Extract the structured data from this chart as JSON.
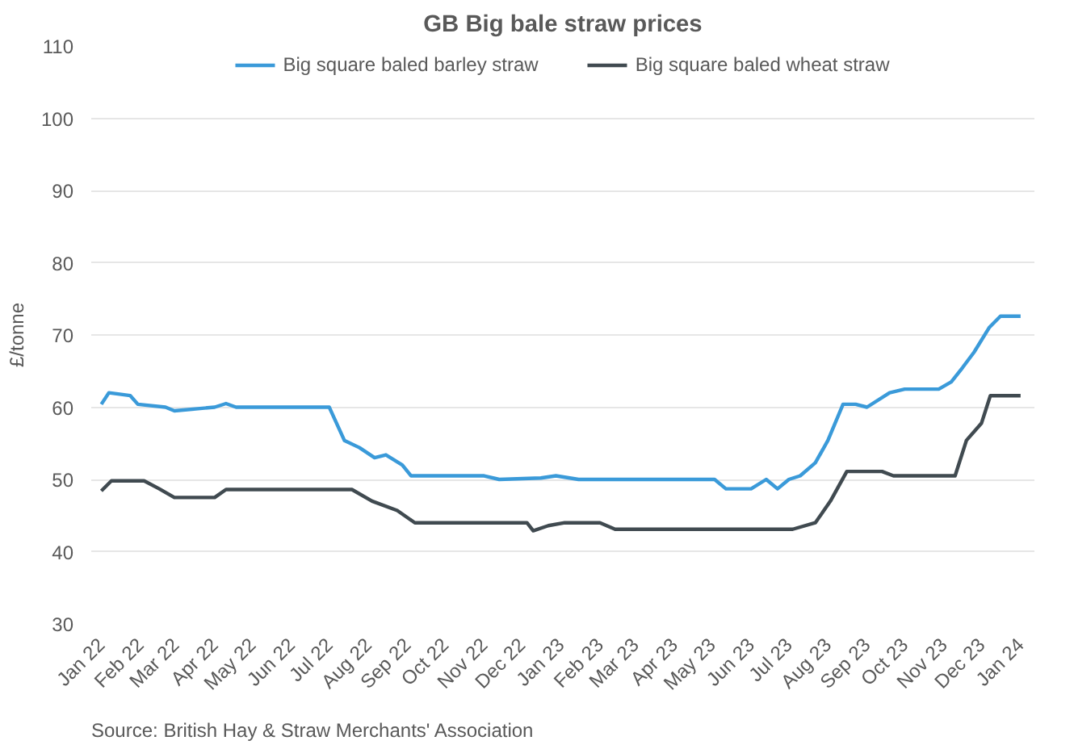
{
  "chart_data": {
    "type": "line",
    "title": "GB Big bale straw prices",
    "ylabel": "£/tonne",
    "annotations": [
      "Source: British Hay & Straw Merchants' Association"
    ],
    "series": [
      {
        "name": "Big square baled barley straw",
        "color": "#3a9ad9",
        "x": [
          "2022-01-01",
          "2022-01-07",
          "2022-01-24",
          "2022-01-30",
          "2022-02-21",
          "2022-02-28",
          "2022-04-01",
          "2022-04-10",
          "2022-04-18",
          "2022-05-06",
          "2022-07-01",
          "2022-07-13",
          "2022-07-25",
          "2022-08-06",
          "2022-08-15",
          "2022-08-28",
          "2022-09-04",
          "2022-11-01",
          "2022-11-13",
          "2022-12-16",
          "2022-12-28",
          "2023-01-15",
          "2023-05-03",
          "2023-05-12",
          "2023-06-01",
          "2023-06-13",
          "2023-06-22",
          "2023-07-01",
          "2023-07-10",
          "2023-07-22",
          "2023-08-01",
          "2023-08-13",
          "2023-08-23",
          "2023-09-01",
          "2023-09-19",
          "2023-10-01",
          "2023-10-28",
          "2023-11-07",
          "2023-11-16",
          "2023-11-25",
          "2023-12-07",
          "2023-12-16",
          "2024-01-01"
        ],
        "values": [
          60.4,
          62,
          61.6,
          60.4,
          60,
          59.5,
          60,
          60.5,
          60,
          60,
          60,
          55.4,
          54.4,
          53,
          53.4,
          52,
          50.5,
          50.5,
          50,
          50.2,
          50.5,
          50,
          50,
          48.7,
          48.7,
          50,
          48.7,
          50,
          50.5,
          52.3,
          55.4,
          60.4,
          60.4,
          60,
          62,
          62.5,
          62.5,
          63.5,
          65.5,
          67.6,
          71,
          72.6,
          72.6
        ]
      },
      {
        "name": "Big square baled wheat straw",
        "color": "#404a50",
        "x": [
          "2022-01-01",
          "2022-01-09",
          "2022-02-04",
          "2022-02-16",
          "2022-02-28",
          "2022-04-01",
          "2022-04-10",
          "2022-07-19",
          "2022-08-04",
          "2022-08-24",
          "2022-09-07",
          "2022-12-05",
          "2022-12-10",
          "2022-12-22",
          "2023-01-04",
          "2023-02-01",
          "2023-02-13",
          "2023-07-04",
          "2023-07-22",
          "2023-08-03",
          "2023-08-16",
          "2023-09-13",
          "2023-09-22",
          "2023-11-10",
          "2023-11-19",
          "2023-12-01",
          "2023-12-08",
          "2024-01-01"
        ],
        "values": [
          48.4,
          49.8,
          49.8,
          48.7,
          47.5,
          47.5,
          48.6,
          48.6,
          47,
          45.7,
          44,
          44,
          42.9,
          43.6,
          44,
          44,
          43.1,
          43.1,
          44,
          47,
          51.1,
          51.1,
          50.5,
          50.5,
          55.4,
          57.8,
          61.6,
          61.6
        ]
      }
    ],
    "xlim": [
      "2021-12-24",
      "2024-01-12"
    ],
    "xticks": [
      {
        "value": "2022-01-01",
        "label": "Jan 22"
      },
      {
        "value": "2022-02-01",
        "label": "Feb 22"
      },
      {
        "value": "2022-03-01",
        "label": "Mar 22"
      },
      {
        "value": "2022-04-01",
        "label": "Apr 22"
      },
      {
        "value": "2022-05-01",
        "label": "May 22"
      },
      {
        "value": "2022-06-01",
        "label": "Jun 22"
      },
      {
        "value": "2022-07-01",
        "label": "Jul 22"
      },
      {
        "value": "2022-08-01",
        "label": "Aug 22"
      },
      {
        "value": "2022-09-01",
        "label": "Sep 22"
      },
      {
        "value": "2022-10-01",
        "label": "Oct 22"
      },
      {
        "value": "2022-11-01",
        "label": "Nov 22"
      },
      {
        "value": "2022-12-01",
        "label": "Dec 22"
      },
      {
        "value": "2023-01-01",
        "label": "Jan 23"
      },
      {
        "value": "2023-02-01",
        "label": "Feb 23"
      },
      {
        "value": "2023-03-01",
        "label": "Mar 23"
      },
      {
        "value": "2023-04-01",
        "label": "Apr 23"
      },
      {
        "value": "2023-05-01",
        "label": "May 23"
      },
      {
        "value": "2023-06-01",
        "label": "Jun 23"
      },
      {
        "value": "2023-07-01",
        "label": "Jul 23"
      },
      {
        "value": "2023-08-01",
        "label": "Aug 23"
      },
      {
        "value": "2023-09-01",
        "label": "Sep 23"
      },
      {
        "value": "2023-10-01",
        "label": "Oct 23"
      },
      {
        "value": "2023-11-01",
        "label": "Nov 23"
      },
      {
        "value": "2023-12-01",
        "label": "Dec 23"
      },
      {
        "value": "2024-01-01",
        "label": "Jan 24"
      }
    ],
    "ylim": [
      30,
      110
    ],
    "yticks": [
      30,
      40,
      50,
      60,
      70,
      80,
      90,
      100,
      110
    ],
    "grid": "y",
    "legend": "top",
    "marker": "none",
    "line_style": "solid"
  }
}
